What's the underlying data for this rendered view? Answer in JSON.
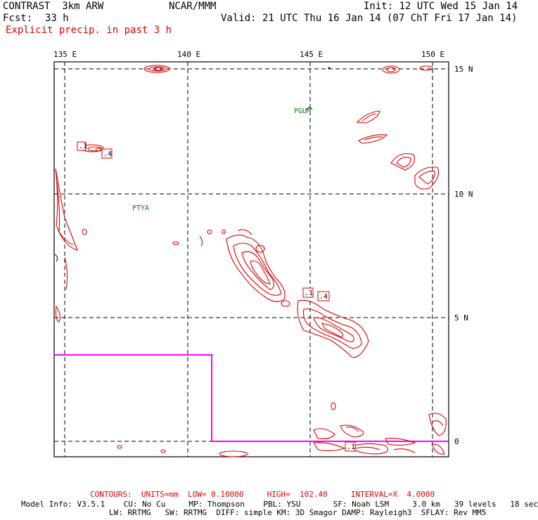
{
  "header": {
    "title_left": "CONTRAST  3km ARW",
    "title_center": "NCAR/MMM",
    "init": "Init: 12 UTC Wed 15 Jan 14",
    "fcst_label": "Fcst:",
    "fcst_value": "33 h",
    "valid": "Valid: 21 UTC Thu 16 Jan 14 (07 ChT Fri 17 Jan 14)",
    "field": "Explicit precip. in past 3 h"
  },
  "map": {
    "lon_labels": [
      "135 E",
      "140 E",
      "145 E",
      "150 E"
    ],
    "lat_labels": [
      "15 N",
      "10 N",
      "5 N",
      "0"
    ],
    "stations": [
      "PGUM",
      "PTYA"
    ],
    "contour_labels": [
      ".1",
      ".4",
      ".1",
      ".4",
      ".1"
    ],
    "colors": {
      "contour": "#e00000",
      "grid": "#000000",
      "station": "#008000",
      "domain_box": "#ff00ff"
    }
  },
  "footer": {
    "contours": "CONTOURS:  UNITS=mm  LOW= 0.10000     HIGH=  102.40     INTERVAL=X  4.0000",
    "model_line1": "Model Info: V3.5.1    CU: No Cu     MP: Thompson    PBL: YSU       SF: Noah LSM     3.0 km   39 levels   18 sec",
    "model_line2": "LW: RRTMG   SW: RRTMG  DIFF: simple KM: 3D Smagor DAMP: Rayleigh3  SFLAY: Rev MM5"
  }
}
